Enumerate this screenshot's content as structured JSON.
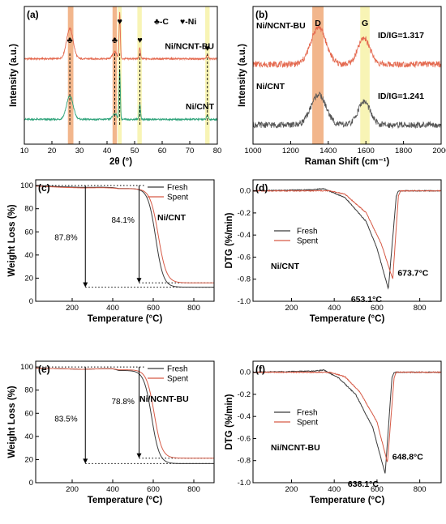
{
  "chart_data": [
    {
      "panel": "(a)",
      "type": "line",
      "xlabel": "2θ (°)",
      "ylabel": "Intensity (a.u.)",
      "xlim": [
        10,
        80
      ],
      "xticks": [
        10,
        20,
        30,
        40,
        50,
        60,
        70,
        80
      ],
      "yticks_visible": false,
      "legend_symbols": {
        "c_text": "♣-C",
        "ni_text": "♥-Ni",
        "c_symbol": "♣",
        "ni_symbol": "♥"
      },
      "highlight_bands": [
        {
          "from": 25.8,
          "to": 27.8,
          "color": "#f0a978"
        },
        {
          "from": 42.0,
          "to": 43.6,
          "color": "#f0a978"
        },
        {
          "from": 43.9,
          "to": 45.3,
          "color": "#f7f2a8"
        },
        {
          "from": 51.0,
          "to": 52.6,
          "color": "#f7f2a8"
        },
        {
          "from": 75.6,
          "to": 77.2,
          "color": "#f7f2a8"
        }
      ],
      "peak_markers": [
        {
          "x": 26.5,
          "symbol": "♣"
        },
        {
          "x": 42.8,
          "symbol": "♣"
        },
        {
          "x": 44.6,
          "symbol": "♥"
        },
        {
          "x": 51.9,
          "symbol": "♥"
        },
        {
          "x": 76.4,
          "symbol": "♥"
        }
      ],
      "series": [
        {
          "label": "Ni/NCNT-BU",
          "color": "#e4694f",
          "baseline": 0.62,
          "peaks": [
            [
              26.5,
              0.22,
              1.2
            ],
            [
              42.8,
              0.05,
              0.8
            ],
            [
              44.6,
              0.33,
              0.22
            ],
            [
              51.9,
              0.08,
              0.25
            ],
            [
              76.4,
              0.03,
              0.3
            ]
          ]
        },
        {
          "label": "Ni/CNT",
          "color": "#2ea37a",
          "baseline": 0.18,
          "peaks": [
            [
              26.5,
              0.17,
              1.2
            ],
            [
              42.8,
              0.04,
              0.8
            ],
            [
              44.6,
              0.36,
              0.22
            ],
            [
              51.9,
              0.11,
              0.25
            ],
            [
              76.4,
              0.03,
              0.3
            ]
          ]
        }
      ]
    },
    {
      "panel": "(b)",
      "type": "line",
      "xlabel": "Raman Shift (cm⁻¹)",
      "ylabel": "Intensity (a.u.)",
      "xlim": [
        1000,
        2000
      ],
      "xticks": [
        1000,
        1200,
        1400,
        1600,
        1800,
        2000
      ],
      "yticks_visible": false,
      "highlight_bands": [
        {
          "from": 1315,
          "to": 1375,
          "label": "D",
          "color": "#f0a978"
        },
        {
          "from": 1570,
          "to": 1620,
          "label": "G",
          "color": "#f7f2a8"
        }
      ],
      "series": [
        {
          "label": "Ni/NCNT-BU",
          "ratio_text": "ID/IG=1.317",
          "color": "#e4694f",
          "baseline": 0.58,
          "peaks": [
            [
              1348,
              0.27,
              40
            ],
            [
              1590,
              0.19,
              32
            ]
          ]
        },
        {
          "label": "Ni/CNT",
          "ratio_text": "ID/IG=1.241",
          "color": "#555555",
          "baseline": 0.14,
          "peaks": [
            [
              1348,
              0.22,
              40
            ],
            [
              1590,
              0.17,
              32
            ]
          ]
        }
      ]
    },
    {
      "panel": "(c)",
      "type": "line",
      "sample_label": "Ni/CNT",
      "xlabel": "Temperature (°C)",
      "ylabel": "Weight Loss (%)",
      "xlim": [
        20,
        900
      ],
      "ylim": [
        0,
        105
      ],
      "xticks": [
        200,
        400,
        600,
        800
      ],
      "yticks": [
        0,
        20,
        40,
        60,
        80,
        100
      ],
      "reference_lines": {
        "start": 100,
        "end_fresh": 12.2,
        "end_spent": 15.9
      },
      "annotations": [
        {
          "text": "87.8%",
          "x": 265,
          "y": 55,
          "arrow_x": 265,
          "arrow_to": 12.2
        },
        {
          "text": "84.1%",
          "x": 530,
          "y": 70,
          "arrow_x": 530,
          "arrow_to": 15.9
        }
      ],
      "series": [
        {
          "name": "Fresh",
          "color": "#3a3a3a",
          "final": 12.2,
          "center": 612,
          "width": 19,
          "x": [
            30,
            150,
            250,
            350,
            400,
            450,
            500,
            550,
            600,
            650,
            700,
            750,
            800,
            900
          ],
          "y": [
            100,
            99,
            98.5,
            98.6,
            98.3,
            97,
            94,
            86,
            60,
            25,
            13,
            12.3,
            12.2,
            12.2
          ]
        },
        {
          "name": "Spent",
          "color": "#d65a46",
          "final": 15.9,
          "center": 625,
          "width": 20,
          "x": [
            30,
            150,
            250,
            350,
            400,
            450,
            500,
            550,
            600,
            650,
            700,
            750,
            800,
            900
          ],
          "y": [
            99.5,
            98.5,
            98,
            98.2,
            97.9,
            97,
            94.5,
            88,
            68,
            35,
            17,
            16,
            15.9,
            15.9
          ]
        }
      ]
    },
    {
      "panel": "(d)",
      "type": "line",
      "sample_label": "Ni/CNT",
      "xlabel": "Temperature (°C)",
      "ylabel": "DTG (%/min)",
      "xlim": [
        20,
        900
      ],
      "ylim": [
        -1.0,
        0.1
      ],
      "xticks": [
        200,
        400,
        600,
        800
      ],
      "yticks": [
        0.0,
        -0.2,
        -0.4,
        -0.6,
        -0.8,
        -1.0
      ],
      "peak_labels": [
        {
          "text": "653.1°C",
          "x": 653.1,
          "y": -0.89
        },
        {
          "text": "673.7°C",
          "x": 673.7,
          "y": -0.8
        }
      ],
      "series": [
        {
          "name": "Fresh",
          "color": "#3a3a3a",
          "peak_x": 653.1,
          "peak_y": -0.89,
          "x": [
            30,
            300,
            350,
            450,
            550,
            600,
            653.1,
            690,
            700,
            900
          ],
          "y": [
            0.0,
            0.01,
            0.02,
            -0.06,
            -0.28,
            -0.52,
            -0.89,
            -0.05,
            0.0,
            0.0
          ]
        },
        {
          "name": "Spent",
          "color": "#d65a46",
          "peak_x": 673.7,
          "peak_y": -0.8,
          "x": [
            30,
            300,
            380,
            450,
            550,
            620,
            673.7,
            700,
            710,
            900
          ],
          "y": [
            0.0,
            0.0,
            0.0,
            -0.03,
            -0.2,
            -0.48,
            -0.8,
            -0.05,
            0.0,
            0.0
          ]
        }
      ]
    },
    {
      "panel": "(e)",
      "type": "line",
      "sample_label": "Ni/NCNT-BU",
      "xlabel": "Temperature (°C)",
      "ylabel": "Weight Loss (%)",
      "xlim": [
        20,
        900
      ],
      "ylim": [
        0,
        105
      ],
      "xticks": [
        200,
        400,
        600,
        800
      ],
      "yticks": [
        0,
        20,
        40,
        60,
        80,
        100
      ],
      "reference_lines": {
        "start": 100,
        "end_fresh": 16.5,
        "end_spent": 21.2
      },
      "annotations": [
        {
          "text": "83.5%",
          "x": 265,
          "y": 55,
          "arrow_x": 265,
          "arrow_to": 16.5
        },
        {
          "text": "78.8%",
          "x": 530,
          "y": 70,
          "arrow_x": 530,
          "arrow_to": 21.2
        }
      ],
      "series": [
        {
          "name": "Fresh",
          "color": "#3a3a3a",
          "final": 16.5,
          "center": 592,
          "width": 19,
          "x": [
            30,
            150,
            250,
            350,
            400,
            450,
            500,
            550,
            600,
            650,
            700,
            800,
            900
          ],
          "y": [
            99,
            98.5,
            98,
            98.5,
            98.5,
            96,
            90,
            75,
            50,
            22,
            17,
            16.5,
            16.5
          ]
        },
        {
          "name": "Spent",
          "color": "#d65a46",
          "final": 21.2,
          "center": 605,
          "width": 19,
          "x": [
            30,
            150,
            250,
            350,
            400,
            450,
            500,
            550,
            600,
            650,
            700,
            800,
            900
          ],
          "y": [
            99,
            98.5,
            98,
            98.5,
            98.5,
            97,
            92,
            80,
            56,
            28,
            22,
            21.2,
            21.2
          ]
        }
      ]
    },
    {
      "panel": "(f)",
      "type": "line",
      "sample_label": "Ni/NCNT-BU",
      "xlabel": "Temperature (°C)",
      "ylabel": "DTG (%/min)",
      "xlim": [
        20,
        900
      ],
      "ylim": [
        -1.0,
        0.1
      ],
      "xticks": [
        200,
        400,
        600,
        800
      ],
      "yticks": [
        0.0,
        -0.2,
        -0.4,
        -0.6,
        -0.8,
        -1.0
      ],
      "peak_labels": [
        {
          "text": "638.1°C",
          "x": 638.1,
          "y": -0.92
        },
        {
          "text": "648.8°C",
          "x": 648.8,
          "y": -0.82
        }
      ],
      "series": [
        {
          "name": "Fresh",
          "color": "#3a3a3a",
          "peak_x": 638.1,
          "peak_y": -0.92,
          "x": [
            30,
            300,
            350,
            420,
            500,
            580,
            638.1,
            670,
            680,
            900
          ],
          "y": [
            0.0,
            0.01,
            0.02,
            -0.05,
            -0.2,
            -0.5,
            -0.92,
            -0.05,
            0.0,
            0.0
          ]
        },
        {
          "name": "Spent",
          "color": "#d65a46",
          "peak_x": 648.8,
          "peak_y": -0.82,
          "x": [
            30,
            300,
            380,
            450,
            520,
            600,
            648.8,
            680,
            690,
            900
          ],
          "y": [
            0.0,
            0.0,
            0.0,
            -0.04,
            -0.18,
            -0.45,
            -0.82,
            -0.05,
            0.0,
            0.0
          ]
        }
      ]
    }
  ]
}
